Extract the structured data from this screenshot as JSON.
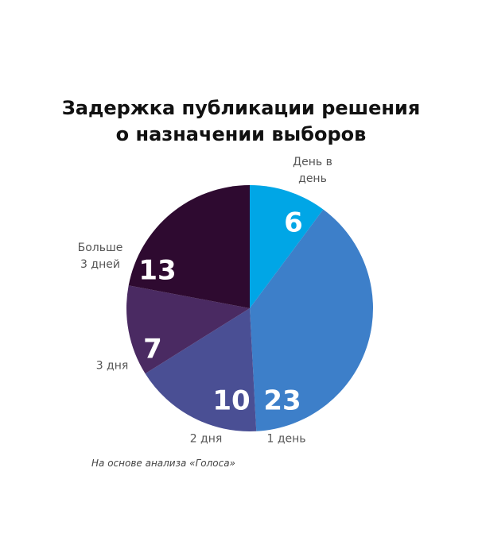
{
  "chart_data": {
    "type": "pie",
    "title": "Задержка публикации решения о назначении выборов",
    "categories": [
      "День в день",
      "1 день",
      "2 дня",
      "3 дня",
      "Больше 3 дней"
    ],
    "values": [
      6,
      23,
      10,
      7,
      13
    ],
    "colors": [
      "#00a6e6",
      "#3d7fc9",
      "#4a4f94",
      "#4a2a62",
      "#2e0a30"
    ],
    "note": "На основе анализа «Голоса»"
  }
}
